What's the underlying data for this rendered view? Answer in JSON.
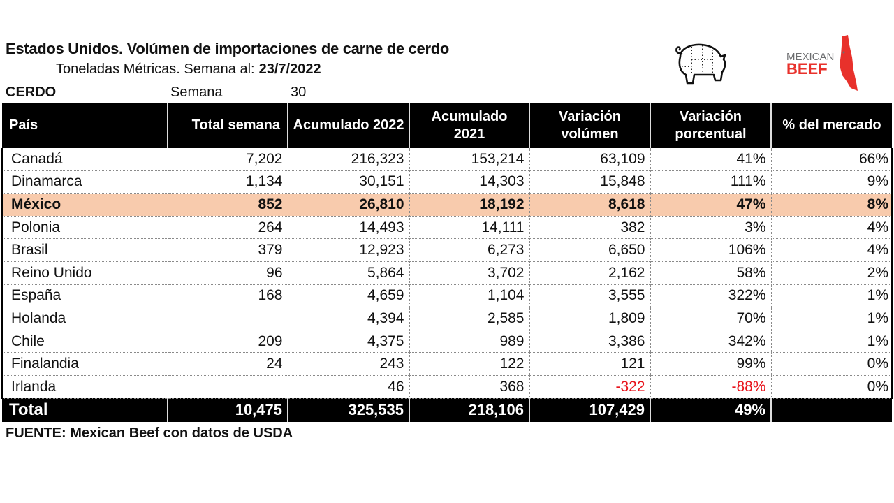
{
  "header": {
    "title": "Estados Unidos. Volúmen de importaciones de carne de cerdo",
    "subtitle_label": "Toneladas Métricas. Semana al:",
    "subtitle_date": "23/7/2022",
    "product": "CERDO",
    "week_label": "Semana",
    "week_number": "30"
  },
  "logos": {
    "pig_icon": "pig-cuts-icon",
    "brand_line1": "MEXICAN",
    "brand_line2": "BEEF",
    "brand_color": "#e8312b"
  },
  "table": {
    "columns": [
      "País",
      "Total semana",
      "Acumulado 2022",
      "Acumulado 2021",
      "Variación volúmen",
      "Variación porcentual",
      "% del mercado"
    ],
    "rows": [
      {
        "pais": "Canadá",
        "total_semana": "7,202",
        "acum_2022": "216,323",
        "acum_2021": "153,214",
        "var_vol": "63,109",
        "var_pct": "41%",
        "mercado": "66%"
      },
      {
        "pais": "Dinamarca",
        "total_semana": "1,134",
        "acum_2022": "30,151",
        "acum_2021": "14,303",
        "var_vol": "15,848",
        "var_pct": "111%",
        "mercado": "9%"
      },
      {
        "pais": "México",
        "total_semana": "852",
        "acum_2022": "26,810",
        "acum_2021": "18,192",
        "var_vol": "8,618",
        "var_pct": "47%",
        "mercado": "8%",
        "highlight": true
      },
      {
        "pais": "Polonia",
        "total_semana": "264",
        "acum_2022": "14,493",
        "acum_2021": "14,111",
        "var_vol": "382",
        "var_pct": "3%",
        "mercado": "4%"
      },
      {
        "pais": "Brasil",
        "total_semana": "379",
        "acum_2022": "12,923",
        "acum_2021": "6,273",
        "var_vol": "6,650",
        "var_pct": "106%",
        "mercado": "4%"
      },
      {
        "pais": "Reino Unido",
        "total_semana": "96",
        "acum_2022": "5,864",
        "acum_2021": "3,702",
        "var_vol": "2,162",
        "var_pct": "58%",
        "mercado": "2%"
      },
      {
        "pais": "España",
        "total_semana": "168",
        "acum_2022": "4,659",
        "acum_2021": "1,104",
        "var_vol": "3,555",
        "var_pct": "322%",
        "mercado": "1%"
      },
      {
        "pais": "Holanda",
        "total_semana": "",
        "acum_2022": "4,394",
        "acum_2021": "2,585",
        "var_vol": "1,809",
        "var_pct": "70%",
        "mercado": "1%"
      },
      {
        "pais": "Chile",
        "total_semana": "209",
        "acum_2022": "4,375",
        "acum_2021": "989",
        "var_vol": "3,386",
        "var_pct": "342%",
        "mercado": "1%"
      },
      {
        "pais": "Finalandia",
        "total_semana": "24",
        "acum_2022": "243",
        "acum_2021": "122",
        "var_vol": "121",
        "var_pct": "99%",
        "mercado": "0%"
      },
      {
        "pais": "Irlanda",
        "total_semana": "",
        "acum_2022": "46",
        "acum_2021": "368",
        "var_vol": "-322",
        "var_pct": "-88%",
        "mercado": "0%",
        "negative": true
      }
    ],
    "total": {
      "label": "Total",
      "total_semana": "10,475",
      "acum_2022": "325,535",
      "acum_2021": "218,106",
      "var_vol": "107,429",
      "var_pct": "49%",
      "mercado": ""
    },
    "colors": {
      "header_bg": "#000000",
      "highlight_bg": "#f8cbad",
      "negative_text": "#e8141c"
    }
  },
  "footer": {
    "source": "FUENTE: Mexican Beef con datos de USDA"
  }
}
